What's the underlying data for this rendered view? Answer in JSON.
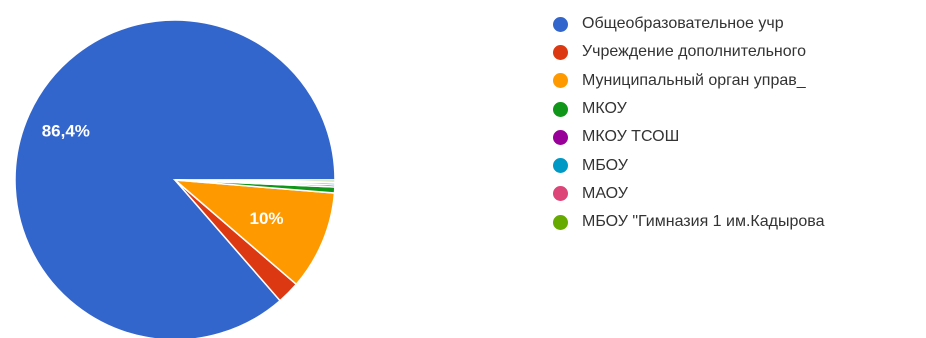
{
  "chart_data": {
    "type": "pie",
    "title": "",
    "categories": [
      "Общеобразовательное учр",
      "Учреждение дополнительного",
      "Муниципальный орган управ_",
      "МКОУ",
      "МКОУ ТСОШ",
      "МБОУ",
      "МАОУ",
      "МБОУ \"Гимназия 1 им.Кадырова"
    ],
    "values": [
      86.4,
      2.3,
      10.0,
      0.6,
      0.2,
      0.2,
      0.1,
      0.2
    ],
    "data_labels": [
      "86,4%",
      "",
      "10%",
      "",
      "",
      "",
      "",
      ""
    ],
    "colors": [
      "#3366cc",
      "#dc3912",
      "#ff9900",
      "#109618",
      "#990099",
      "#0099c6",
      "#dd4477",
      "#66aa00"
    ],
    "legend_position": "right",
    "start": "right-horizontal",
    "direction": "counterclockwise"
  }
}
